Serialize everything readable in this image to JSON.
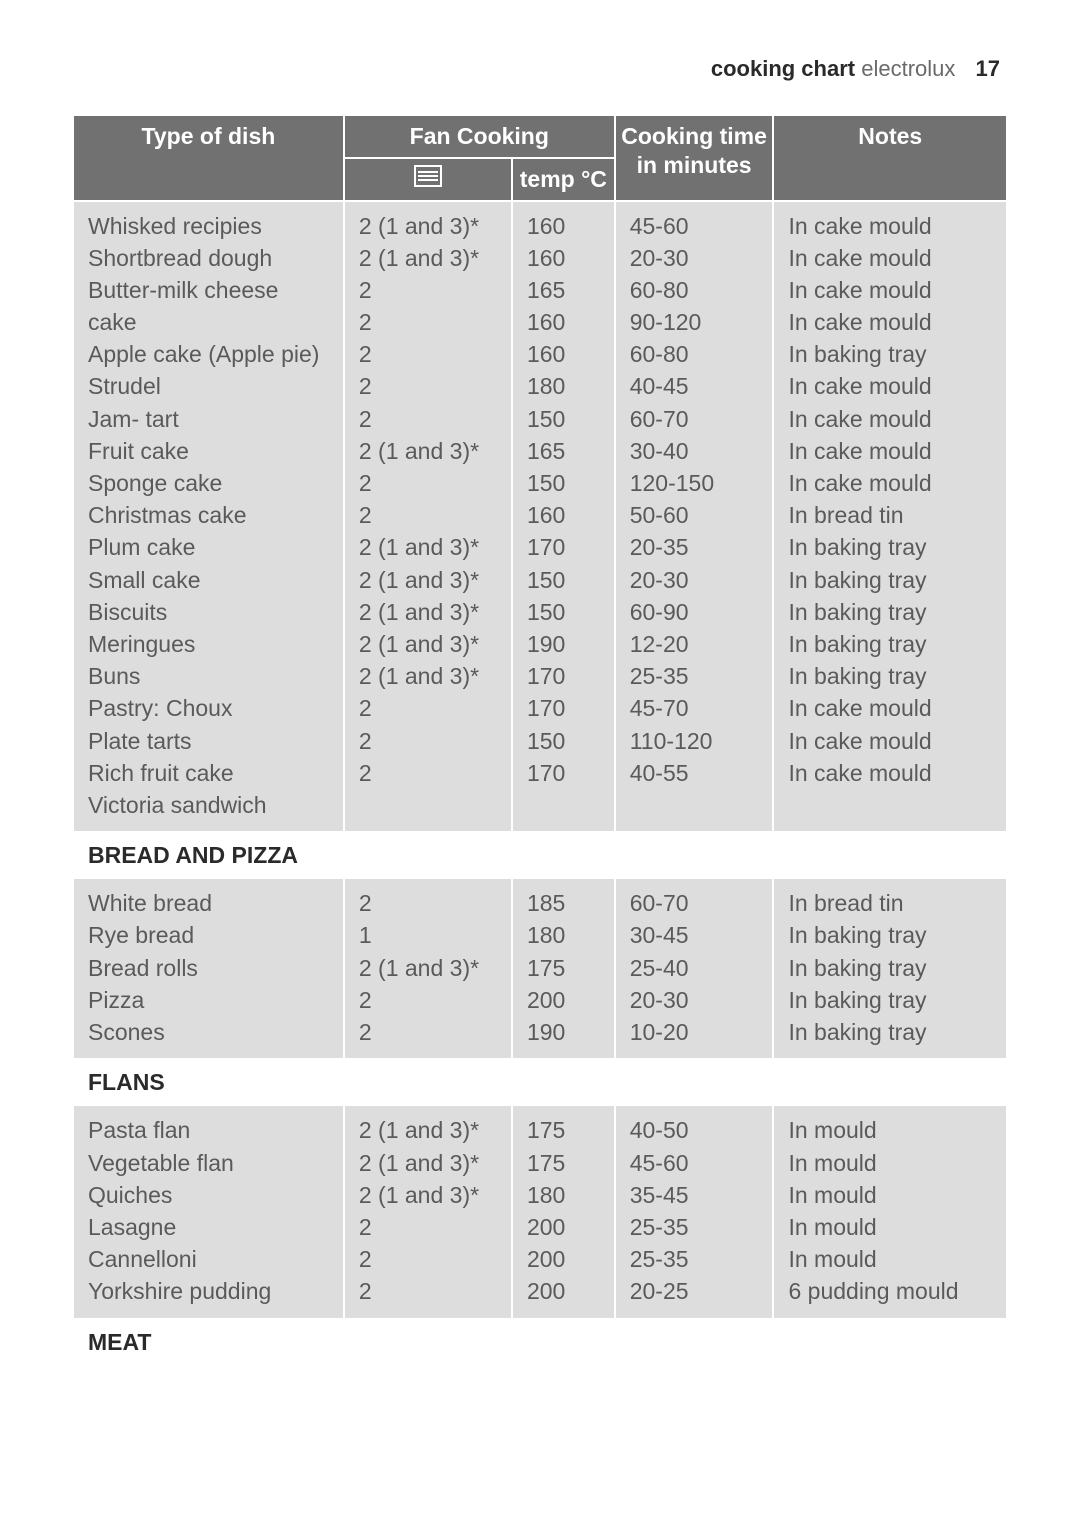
{
  "page_header": {
    "section": "cooking chart",
    "brand": "electrolux",
    "page_number": "17"
  },
  "table": {
    "headers": {
      "type_of_dish": "Type of dish",
      "fan_cooking": "Fan Cooking",
      "temp": "temp °C",
      "cooking_time": "Cooking time in minutes",
      "notes": "Notes"
    },
    "groups": [
      {
        "rows": [
          {
            "dish": "Whisked recipies",
            "level": "2 (1 and 3)*",
            "temp": "160",
            "time": "45-60",
            "notes": "In cake mould"
          },
          {
            "dish": "Shortbread dough",
            "level": "2 (1 and 3)*",
            "temp": "160",
            "time": "20-30",
            "notes": "In cake mould"
          },
          {
            "dish": "Butter-milk cheese cake",
            "level": "2",
            "temp": "165",
            "time": "60-80",
            "notes": "In cake mould"
          },
          {
            "dish": "Apple cake (Apple pie)",
            "level": "2",
            "temp": "160",
            "time": "90-120",
            "notes": "In cake mould"
          },
          {
            "dish": "Strudel",
            "level": "2",
            "temp": "160",
            "time": "60-80",
            "notes": "In baking tray"
          },
          {
            "dish": "Jam- tart",
            "level": "2",
            "temp": "180",
            "time": "40-45",
            "notes": "In cake mould"
          },
          {
            "dish": "Fruit cake",
            "level": "2",
            "temp": "150",
            "time": "60-70",
            "notes": "In cake mould"
          },
          {
            "dish": "Sponge cake",
            "level": "2 (1 and 3)*",
            "temp": "165",
            "time": "30-40",
            "notes": "In cake mould"
          },
          {
            "dish": "Christmas cake",
            "level": "2",
            "temp": "150",
            "time": "120-150",
            "notes": "In cake mould"
          },
          {
            "dish": "Plum cake",
            "level": "2",
            "temp": "160",
            "time": "50-60",
            "notes": "In bread tin"
          },
          {
            "dish": "Small cake",
            "level": "2 (1 and 3)*",
            "temp": "170",
            "time": "20-35",
            "notes": "In baking tray"
          },
          {
            "dish": "Biscuits",
            "level": "2 (1 and 3)*",
            "temp": "150",
            "time": "20-30",
            "notes": "In baking tray"
          },
          {
            "dish": "Meringues",
            "level": "2 (1 and 3)*",
            "temp": "150",
            "time": "60-90",
            "notes": "In baking tray"
          },
          {
            "dish": "Buns",
            "level": "2 (1 and 3)*",
            "temp": "190",
            "time": "12-20",
            "notes": "In baking tray"
          },
          {
            "dish": "Pastry: Choux",
            "level": "2 (1 and 3)*",
            "temp": "170",
            "time": "25-35",
            "notes": "In baking tray"
          },
          {
            "dish": "Plate tarts",
            "level": "2",
            "temp": "170",
            "time": "45-70",
            "notes": "In cake mould"
          },
          {
            "dish": "Rich fruit cake",
            "level": "2",
            "temp": "150",
            "time": "110-120",
            "notes": "In cake mould"
          },
          {
            "dish": "Victoria sandwich",
            "level": "2",
            "temp": "170",
            "time": "40-55",
            "notes": "In cake mould"
          }
        ]
      },
      {
        "title": "BREAD AND PIZZA",
        "rows": [
          {
            "dish": "White bread",
            "level": "2",
            "temp": "185",
            "time": "60-70",
            "notes": "In bread tin"
          },
          {
            "dish": "Rye bread",
            "level": "1",
            "temp": "180",
            "time": "30-45",
            "notes": "In baking tray"
          },
          {
            "dish": "Bread rolls",
            "level": "2 (1 and 3)*",
            "temp": "175",
            "time": "25-40",
            "notes": "In baking tray"
          },
          {
            "dish": "Pizza",
            "level": "2",
            "temp": "200",
            "time": "20-30",
            "notes": "In baking tray"
          },
          {
            "dish": "Scones",
            "level": "2",
            "temp": "190",
            "time": "10-20",
            "notes": "In baking tray"
          }
        ]
      },
      {
        "title": "FLANS",
        "rows": [
          {
            "dish": "Pasta flan",
            "level": "2 (1 and 3)*",
            "temp": "175",
            "time": "40-50",
            "notes": "In mould"
          },
          {
            "dish": "Vegetable flan",
            "level": "2 (1 and 3)*",
            "temp": "175",
            "time": "45-60",
            "notes": "In mould"
          },
          {
            "dish": "Quiches",
            "level": "2 (1 and 3)*",
            "temp": "180",
            "time": "35-45",
            "notes": "In mould"
          },
          {
            "dish": "Lasagne",
            "level": "2",
            "temp": "200",
            "time": "25-35",
            "notes": "In mould"
          },
          {
            "dish": "Cannelloni",
            "level": "2",
            "temp": "200",
            "time": "25-35",
            "notes": "In mould"
          },
          {
            "dish": "Yorkshire pudding",
            "level": "2",
            "temp": "200",
            "time": "20-25",
            "notes": "6 pudding mould"
          }
        ]
      },
      {
        "title": "MEAT",
        "rows": []
      }
    ]
  },
  "colors": {
    "header_bg": "#717171",
    "header_text": "#ffffff",
    "cell_bg": "#dddddd",
    "section_bg": "#ffffff",
    "body_text": "#5a5a5a",
    "border": "#ffffff"
  }
}
